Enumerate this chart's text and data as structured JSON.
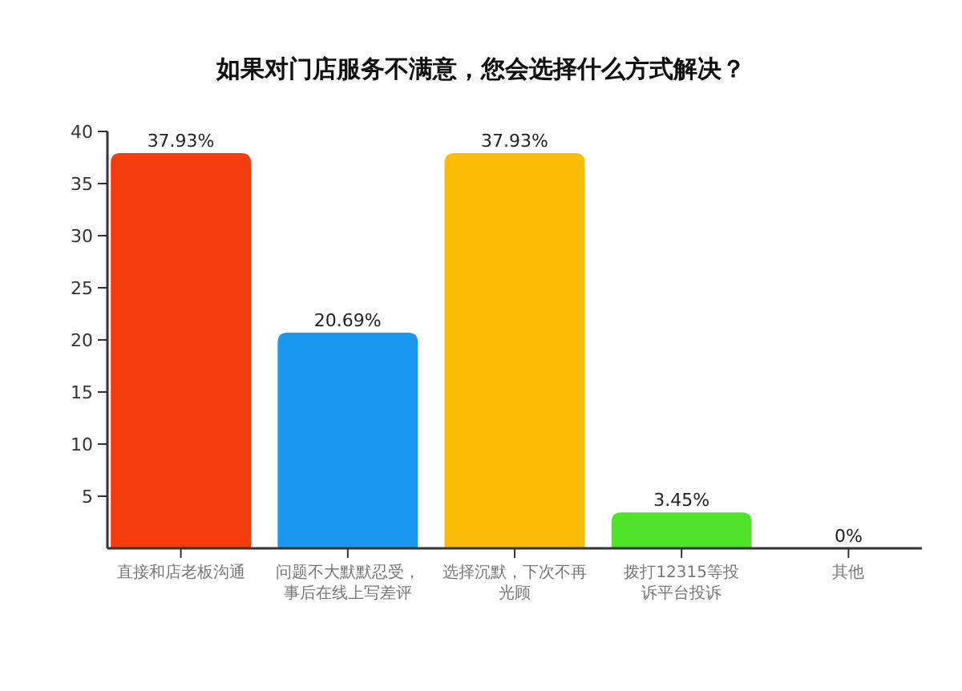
{
  "chart_data": {
    "type": "bar",
    "title": "如果对门店服务不满意，您会选择什么方式解决？",
    "categories": [
      "直接和店老板沟通",
      "问题不大默默忍受，事后在线上写差评",
      "选择沉默，下次不再光顾",
      "拨打12315等投诉平台投诉",
      "其他"
    ],
    "values": [
      37.93,
      20.69,
      37.93,
      3.45,
      0
    ],
    "colors": [
      "#f63b0c",
      "#1a98ee",
      "#fcbc06",
      "#4fe42a",
      "#9a9a9a"
    ],
    "value_labels": [
      "37.93%",
      "20.69%",
      "37.93%",
      "3.45%",
      "0%"
    ],
    "ylim": [
      0,
      40
    ],
    "yticks": [
      5,
      10,
      15,
      20,
      25,
      30,
      35,
      40
    ],
    "grid": false
  }
}
